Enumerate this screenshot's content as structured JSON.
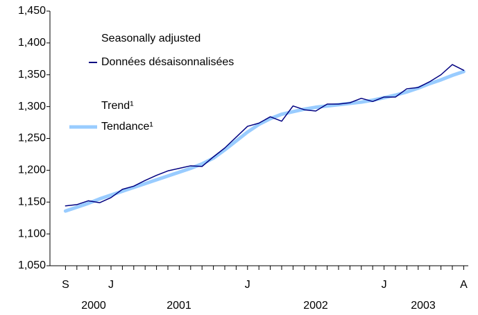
{
  "chart_data": {
    "type": "line",
    "categories": [
      "S",
      null,
      null,
      null,
      "J",
      null,
      null,
      null,
      null,
      null,
      null,
      null,
      null,
      null,
      null,
      null,
      "J",
      null,
      null,
      null,
      null,
      null,
      null,
      null,
      null,
      null,
      null,
      null,
      "J",
      null,
      null,
      null,
      null,
      null,
      null,
      "A"
    ],
    "year_labels": [
      "2000",
      "2001",
      "2002",
      "2003"
    ],
    "series": [
      {
        "name": "Seasonally adjusted",
        "name_fr": "Données désaisonnalisées",
        "color": "#000080",
        "values": [
          1144,
          1146,
          1152,
          1149,
          1157,
          1170,
          1175,
          1184,
          1192,
          1199,
          1203,
          1207,
          1206,
          1221,
          1235,
          1252,
          1269,
          1274,
          1284,
          1277,
          1301,
          1295,
          1293,
          1304,
          1304,
          1306,
          1313,
          1308,
          1315,
          1315,
          1328,
          1330,
          1339,
          1350,
          1366,
          1357
        ]
      },
      {
        "name": "Trend¹",
        "name_fr": "Tendance¹",
        "color": "#99ccff",
        "values": [
          1136,
          1142,
          1148,
          1155,
          1161,
          1167,
          1173,
          1179,
          1185,
          1191,
          1197,
          1203,
          1210,
          1219,
          1232,
          1246,
          1260,
          1272,
          1281,
          1288,
          1292,
          1296,
          1299,
          1301,
          1303,
          1305,
          1307,
          1310,
          1314,
          1318,
          1323,
          1329,
          1336,
          1342,
          1349,
          1355
        ]
      }
    ],
    "ylim": [
      1050,
      1450
    ],
    "yticks": [
      {
        "value": 1050,
        "label": "1,050"
      },
      {
        "value": 1100,
        "label": "1,100"
      },
      {
        "value": 1150,
        "label": "1,150"
      },
      {
        "value": 1200,
        "label": "1,200"
      },
      {
        "value": 1250,
        "label": "1,250"
      },
      {
        "value": 1300,
        "label": "1,300"
      },
      {
        "value": 1350,
        "label": "1,350"
      },
      {
        "value": 1400,
        "label": "1,400"
      },
      {
        "value": 1450,
        "label": "1,450"
      }
    ],
    "grid": false
  }
}
